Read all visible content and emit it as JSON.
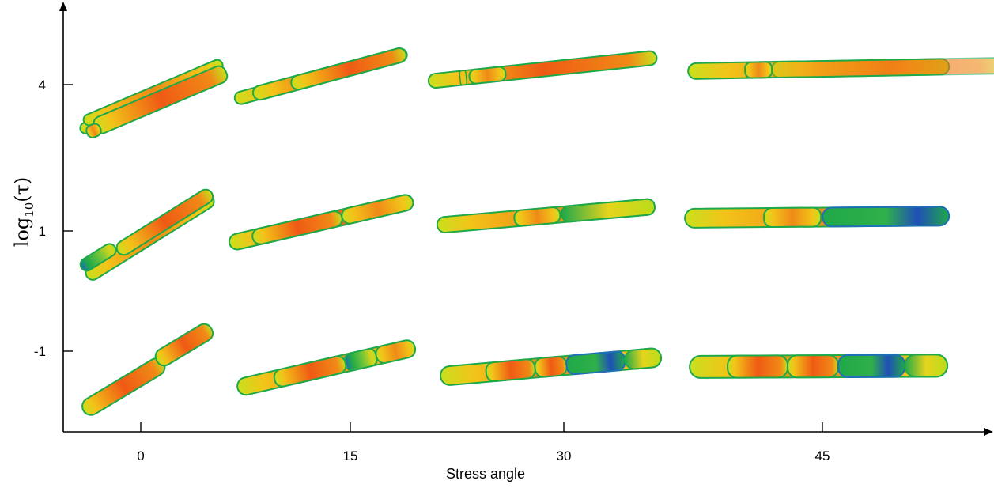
{
  "x_axis": {
    "label": "Stress angle",
    "ticks": [
      "0",
      "15",
      "30",
      "45"
    ]
  },
  "y_axis": {
    "label_main": "log",
    "label_sub": "10",
    "label_arg": "(τ)",
    "ticks": [
      "4",
      "1",
      "-1"
    ]
  },
  "colormap": [
    "#1f4fb8",
    "#1fa84a",
    "#b9dc1a",
    "#f2d21a",
    "#f08a16",
    "#e02a12"
  ],
  "grid": {
    "columns": [
      "0",
      "15",
      "30",
      "45"
    ],
    "rows": [
      "4",
      "1",
      "-1"
    ]
  }
}
